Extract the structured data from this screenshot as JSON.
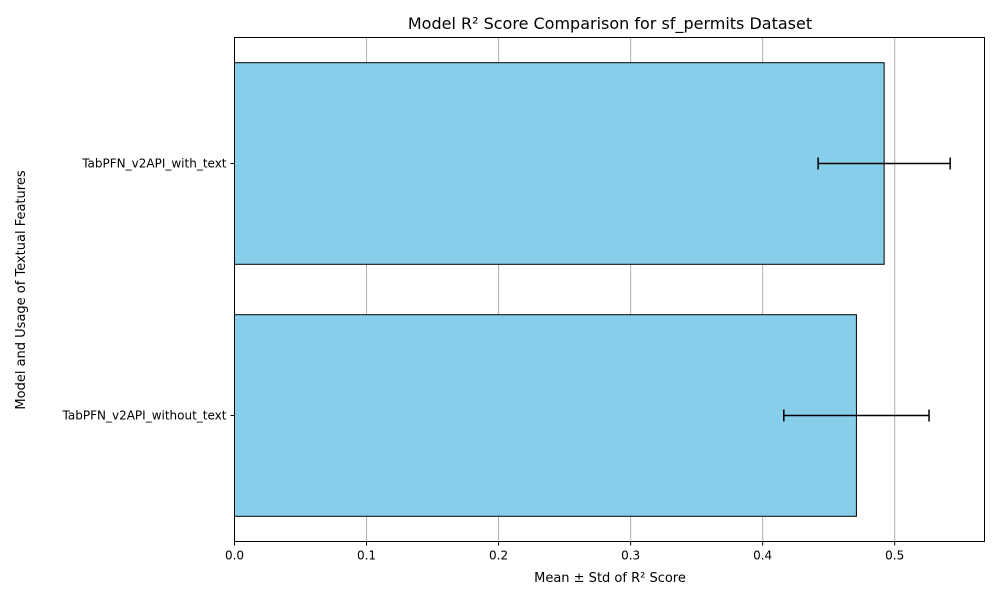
{
  "chart_data": {
    "type": "bar",
    "orientation": "horizontal",
    "title": "Model R² Score Comparison for sf_permits Dataset",
    "xlabel": "Mean ± Std of R² Score",
    "ylabel": "Model and Usage of Textual Features",
    "categories": [
      "TabPFN_v2API_with_text",
      "TabPFN_v2API_without_text"
    ],
    "values": [
      0.492,
      0.471
    ],
    "errors": [
      0.05,
      0.055
    ],
    "xlim": [
      0,
      0.568
    ],
    "xticks": [
      "0.0",
      "0.1",
      "0.2",
      "0.3",
      "0.4",
      "0.5"
    ],
    "grid": "vertical",
    "colors": {
      "bar_fill": "#87ceeb",
      "bar_edge": "#000000",
      "grid": "#b0b0b0",
      "errorbar": "#000000"
    }
  }
}
